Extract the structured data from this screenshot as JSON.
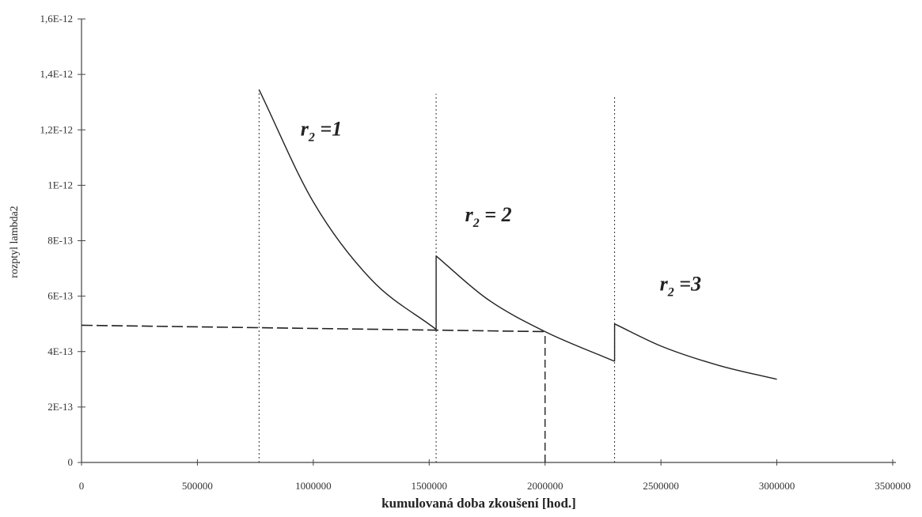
{
  "chart_data": {
    "type": "line",
    "title": "",
    "xlabel": "kumulovaná doba zkoušení [hod.]",
    "ylabel": "rozptyl lambda2",
    "xlim": [
      0,
      3500000
    ],
    "ylim": [
      0,
      1.6e-12
    ],
    "x_ticks": [
      {
        "value": 0,
        "label": "0"
      },
      {
        "value": 500000,
        "label": "500000"
      },
      {
        "value": 1000000,
        "label": "1000000"
      },
      {
        "value": 1500000,
        "label": "1500000"
      },
      {
        "value": 2000000,
        "label": "2000000"
      },
      {
        "value": 2500000,
        "label": "2500000"
      },
      {
        "value": 3000000,
        "label": "3000000"
      },
      {
        "value": 3500000,
        "label": "3500000"
      }
    ],
    "y_ticks": [
      {
        "value": 0,
        "label": "0"
      },
      {
        "value": 2e-13,
        "label": "2E-13"
      },
      {
        "value": 4e-13,
        "label": "4E-13"
      },
      {
        "value": 6e-13,
        "label": "6E-13"
      },
      {
        "value": 8e-13,
        "label": "8E-13"
      },
      {
        "value": 1e-12,
        "label": "1E-12"
      },
      {
        "value": 1.2e-12,
        "label": "1,2E-12"
      },
      {
        "value": 1.4e-12,
        "label": "1,4E-12"
      },
      {
        "value": 1.6e-12,
        "label": "1,6E-12"
      }
    ],
    "series": [
      {
        "segments": [
          {
            "x": [
              766000,
              1000000,
              1250000,
              1530000
            ],
            "y": [
              1.345e-12,
              9.4e-13,
              6.6e-13,
              4.8e-13
            ]
          },
          {
            "x": [
              1530000,
              1750000,
              2000000,
              2300000
            ],
            "y": [
              7.45e-13,
              5.9e-13,
              4.72e-13,
              3.65e-13
            ]
          },
          {
            "x": [
              2300000,
              2500000,
              2750000,
              3000000
            ],
            "y": [
              5e-13,
              4.2e-13,
              3.5e-13,
              3e-13
            ]
          }
        ],
        "color": "#222222"
      }
    ],
    "reference_lines": {
      "dotted_vertical": [
        {
          "x": 766000,
          "y_top": 1.345e-12
        },
        {
          "x": 1530000,
          "y_top": 1.33e-12
        },
        {
          "x": 2300000,
          "y_top": 1.32e-12
        }
      ],
      "dashed_horizontal": {
        "x": [
          0,
          2000000
        ],
        "y": [
          4.95e-13,
          4.72e-13
        ]
      },
      "dashed_vertical": {
        "x": 2000000,
        "y": [
          0,
          4.72e-13
        ]
      }
    },
    "annotations": [
      {
        "main": "r",
        "sub": "2",
        "rest": " =1",
        "x": 945000,
        "y": 1.18e-12
      },
      {
        "main": "r",
        "sub": "2",
        "rest": " = 2",
        "x": 1655000,
        "y": 8.7e-13
      },
      {
        "main": "r",
        "sub": "2",
        "rest": " =3",
        "x": 2495000,
        "y": 6.2e-13
      }
    ],
    "grid": false,
    "legend": "none"
  }
}
